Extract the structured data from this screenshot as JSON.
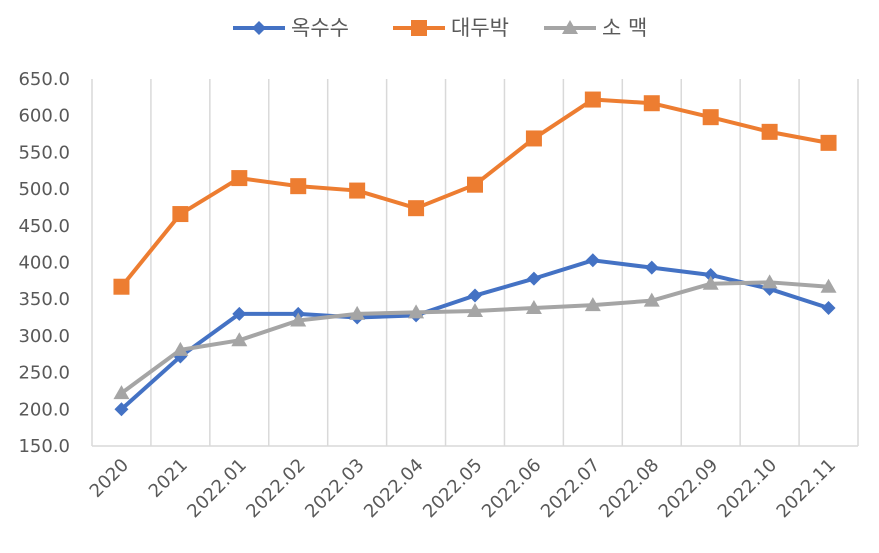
{
  "chart_data": {
    "type": "line",
    "title": "",
    "xlabel": "",
    "ylabel": "",
    "categories": [
      "2020",
      "2021",
      "2022.01",
      "2022.02",
      "2022.03",
      "2022.04",
      "2022.05",
      "2022.06",
      "2022.07",
      "2022.08",
      "2022.09",
      "2022.10",
      "2022.11"
    ],
    "ylim": [
      150,
      650
    ],
    "yticks": [
      "150.0",
      "200.0",
      "250.0",
      "300.0",
      "350.0",
      "400.0",
      "450.0",
      "500.0",
      "550.0",
      "600.0",
      "650.0"
    ],
    "grid": "vertical",
    "legend_position": "top",
    "series": [
      {
        "name": "옥수수",
        "color": "#4472C4",
        "marker": "diamond",
        "values": [
          200,
          272,
          330,
          330,
          325,
          328,
          355,
          378,
          403,
          393,
          383,
          364,
          338
        ]
      },
      {
        "name": "대두박",
        "color": "#ED7D31",
        "marker": "square",
        "values": [
          367,
          466,
          515,
          504,
          498,
          474,
          506,
          569,
          622,
          617,
          598,
          578,
          563
        ]
      },
      {
        "name": "소 맥",
        "color": "#A5A5A5",
        "marker": "triangle",
        "values": [
          222,
          281,
          294,
          321,
          330,
          332,
          334,
          338,
          342,
          348,
          371,
          373,
          367
        ]
      }
    ]
  }
}
